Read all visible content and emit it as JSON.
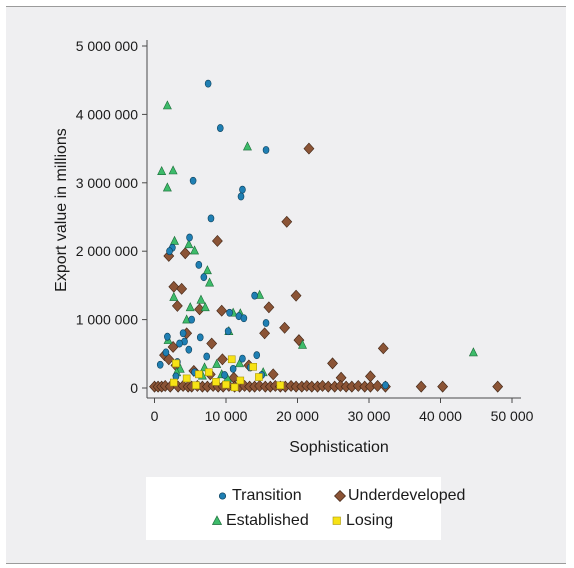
{
  "colors": {
    "transition": "#1f7fb3",
    "underdeveloped": "#8b5436",
    "established": "#3dbb6a",
    "losing": "#f7e215",
    "axis": "#4a4a4a",
    "background": "#efeff1"
  },
  "chart_data": {
    "type": "scatter",
    "title": "",
    "xlabel": "Sophistication",
    "ylabel": "Export value in millions",
    "xlim": [
      0,
      50000
    ],
    "ylim": [
      0,
      5000000
    ],
    "xticks": [
      0,
      10000,
      20000,
      30000,
      40000,
      50000
    ],
    "xtick_labels": [
      "0",
      "10 000",
      "20 000",
      "30 000",
      "40 000",
      "50 000"
    ],
    "yticks": [
      0,
      1000000,
      2000000,
      3000000,
      4000000,
      5000000
    ],
    "ytick_labels": [
      "0",
      "1 000 000",
      "2 000 000",
      "3 000 000",
      "4 000 000",
      "5 000 000"
    ],
    "grid": false,
    "legend_position": "bottom",
    "series": [
      {
        "name": "Transition",
        "marker": "circle",
        "points": [
          [
            7500,
            4450000
          ],
          [
            9200,
            3800000
          ],
          [
            15600,
            3480000
          ],
          [
            5400,
            3030000
          ],
          [
            12300,
            2900000
          ],
          [
            12100,
            2800000
          ],
          [
            7900,
            2480000
          ],
          [
            4900,
            2200000
          ],
          [
            2500,
            2050000
          ],
          [
            2100,
            2000000
          ],
          [
            6200,
            1800000
          ],
          [
            6900,
            1620000
          ],
          [
            14000,
            1350000
          ],
          [
            15600,
            950000
          ],
          [
            11800,
            1050000
          ],
          [
            10500,
            1100000
          ],
          [
            12500,
            1020000
          ],
          [
            5200,
            1000000
          ],
          [
            4000,
            800000
          ],
          [
            1800,
            750000
          ],
          [
            10300,
            830000
          ],
          [
            6400,
            740000
          ],
          [
            4200,
            680000
          ],
          [
            3500,
            650000
          ],
          [
            4800,
            560000
          ],
          [
            1600,
            520000
          ],
          [
            7300,
            460000
          ],
          [
            14300,
            480000
          ],
          [
            12300,
            430000
          ],
          [
            3200,
            380000
          ],
          [
            800,
            340000
          ],
          [
            11000,
            280000
          ],
          [
            5600,
            230000
          ],
          [
            9800,
            190000
          ],
          [
            13400,
            300000
          ],
          [
            15000,
            190000
          ],
          [
            3000,
            170000
          ],
          [
            32300,
            40000
          ]
        ]
      },
      {
        "name": "Underdeveloped",
        "marker": "diamond",
        "points": [
          [
            21600,
            3500000
          ],
          [
            18500,
            2430000
          ],
          [
            8800,
            2150000
          ],
          [
            2000,
            1930000
          ],
          [
            4300,
            1970000
          ],
          [
            2700,
            1480000
          ],
          [
            3800,
            1450000
          ],
          [
            19800,
            1350000
          ],
          [
            3200,
            1200000
          ],
          [
            6300,
            1150000
          ],
          [
            16000,
            1180000
          ],
          [
            9400,
            1130000
          ],
          [
            18200,
            880000
          ],
          [
            15400,
            800000
          ],
          [
            20200,
            700000
          ],
          [
            4500,
            800000
          ],
          [
            8000,
            650000
          ],
          [
            2600,
            600000
          ],
          [
            1400,
            480000
          ],
          [
            2000,
            420000
          ],
          [
            9500,
            420000
          ],
          [
            3000,
            330000
          ],
          [
            13200,
            330000
          ],
          [
            24900,
            360000
          ],
          [
            32000,
            580000
          ],
          [
            5500,
            250000
          ],
          [
            7800,
            200000
          ],
          [
            16600,
            200000
          ],
          [
            26100,
            150000
          ],
          [
            30200,
            170000
          ],
          [
            11100,
            150000
          ],
          [
            0,
            20000
          ],
          [
            500,
            20000
          ],
          [
            1000,
            20000
          ],
          [
            1500,
            30000
          ],
          [
            2200,
            20000
          ],
          [
            3300,
            20000
          ],
          [
            4000,
            30000
          ],
          [
            4700,
            20000
          ],
          [
            5200,
            20000
          ],
          [
            6000,
            30000
          ],
          [
            6700,
            20000
          ],
          [
            7400,
            20000
          ],
          [
            8200,
            30000
          ],
          [
            8900,
            20000
          ],
          [
            9600,
            20000
          ],
          [
            10400,
            30000
          ],
          [
            11200,
            20000
          ],
          [
            11900,
            20000
          ],
          [
            12600,
            30000
          ],
          [
            13300,
            20000
          ],
          [
            14000,
            20000
          ],
          [
            14700,
            30000
          ],
          [
            15500,
            20000
          ],
          [
            16200,
            20000
          ],
          [
            16900,
            30000
          ],
          [
            17600,
            20000
          ],
          [
            18300,
            20000
          ],
          [
            19100,
            30000
          ],
          [
            19800,
            20000
          ],
          [
            20600,
            20000
          ],
          [
            21300,
            30000
          ],
          [
            22000,
            20000
          ],
          [
            22800,
            20000
          ],
          [
            23500,
            30000
          ],
          [
            24300,
            20000
          ],
          [
            25200,
            20000
          ],
          [
            26000,
            30000
          ],
          [
            26800,
            20000
          ],
          [
            27600,
            20000
          ],
          [
            28500,
            30000
          ],
          [
            29400,
            20000
          ],
          [
            30200,
            20000
          ],
          [
            31200,
            30000
          ],
          [
            32300,
            20000
          ],
          [
            37300,
            20000
          ],
          [
            40300,
            20000
          ],
          [
            48000,
            20000
          ]
        ]
      },
      {
        "name": "Established",
        "marker": "triangle",
        "points": [
          [
            1800,
            4130000
          ],
          [
            13000,
            3530000
          ],
          [
            1000,
            3170000
          ],
          [
            2600,
            3180000
          ],
          [
            1800,
            2930000
          ],
          [
            2800,
            2150000
          ],
          [
            4800,
            2100000
          ],
          [
            5600,
            2010000
          ],
          [
            7400,
            1720000
          ],
          [
            7700,
            1540000
          ],
          [
            2700,
            1330000
          ],
          [
            6500,
            1290000
          ],
          [
            14700,
            1360000
          ],
          [
            5000,
            1180000
          ],
          [
            11000,
            1100000
          ],
          [
            7100,
            1180000
          ],
          [
            12000,
            1090000
          ],
          [
            4500,
            1000000
          ],
          [
            10400,
            830000
          ],
          [
            20700,
            630000
          ],
          [
            1900,
            700000
          ],
          [
            44600,
            520000
          ],
          [
            8700,
            350000
          ],
          [
            7000,
            300000
          ],
          [
            3600,
            280000
          ],
          [
            11900,
            360000
          ],
          [
            9400,
            200000
          ],
          [
            3100,
            230000
          ],
          [
            15200,
            230000
          ],
          [
            10200,
            140000
          ],
          [
            6700,
            180000
          ]
        ]
      },
      {
        "name": "Losing",
        "marker": "square",
        "points": [
          [
            3000,
            360000
          ],
          [
            10800,
            420000
          ],
          [
            13800,
            310000
          ],
          [
            2700,
            80000
          ],
          [
            4500,
            140000
          ],
          [
            5800,
            40000
          ],
          [
            7600,
            230000
          ],
          [
            8600,
            90000
          ],
          [
            10000,
            50000
          ],
          [
            12000,
            110000
          ],
          [
            14600,
            160000
          ],
          [
            17600,
            40000
          ],
          [
            11200,
            10000
          ],
          [
            6200,
            200000
          ]
        ]
      }
    ]
  }
}
